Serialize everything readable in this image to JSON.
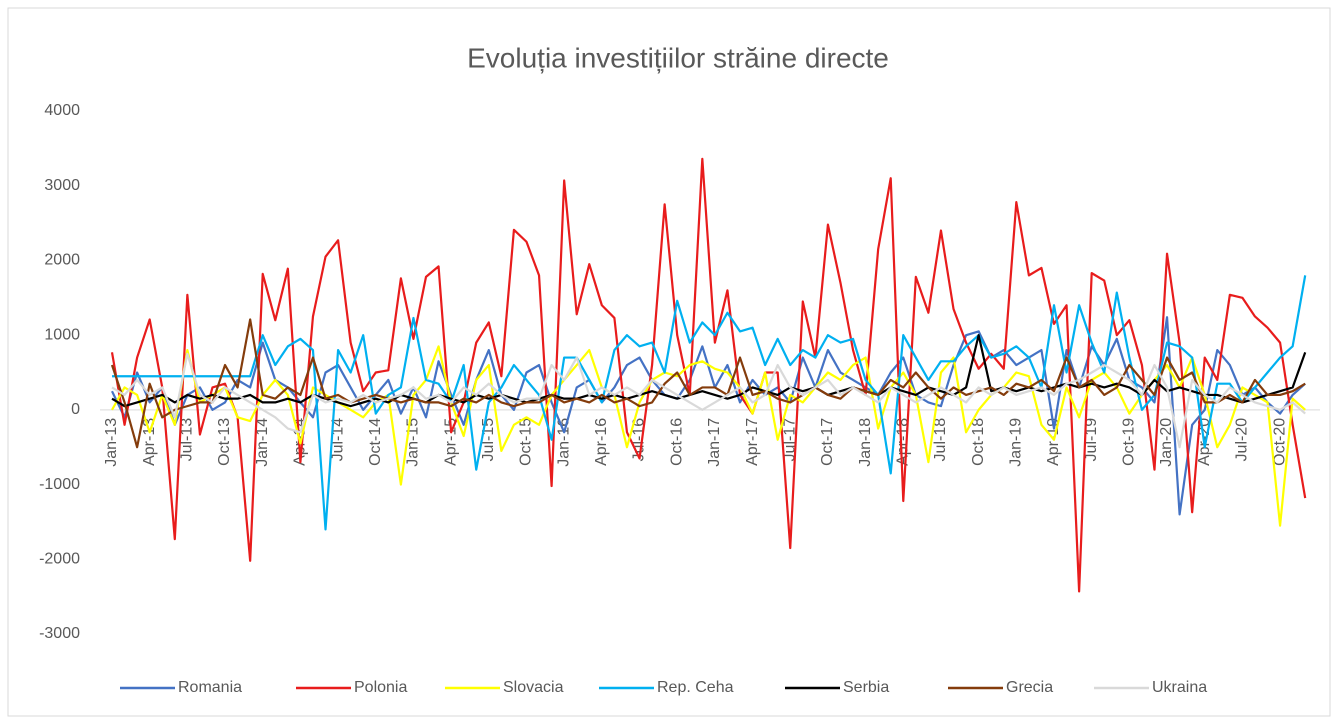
{
  "chart_data": {
    "type": "line",
    "title": "Evoluția investițiilor străine directe",
    "categories": [
      "Jan-13",
      null,
      null,
      "Apr-13",
      null,
      null,
      "Jul-13",
      null,
      null,
      "Oct-13",
      null,
      null,
      "Jan-14",
      null,
      null,
      "Apr-14",
      null,
      null,
      "Jul-14",
      null,
      null,
      "Oct-14",
      null,
      null,
      "Jan-15",
      null,
      null,
      "Apr-15",
      null,
      null,
      "Jul-15",
      null,
      null,
      "Oct-15",
      null,
      null,
      "Jan-16",
      null,
      null,
      "Apr-16",
      null,
      null,
      "Jul-16",
      null,
      null,
      "Oct-16",
      null,
      null,
      "Jan-17",
      null,
      null,
      "Apr-17",
      null,
      null,
      "Jul-17",
      null,
      null,
      "Oct-17",
      null,
      null,
      "Jan-18",
      null,
      null,
      "Apr-18",
      null,
      null,
      "Jul-18",
      null,
      null,
      "Oct-18",
      null,
      null,
      "Jan-19",
      null,
      null,
      "Apr-19",
      null,
      null,
      "Jul-19",
      null,
      null,
      "Oct-19",
      null,
      null,
      "Jan-20",
      null,
      null,
      "Apr-20",
      null,
      null,
      "Jul-20",
      null,
      null,
      "Oct-20",
      null,
      null
    ],
    "ylim": [
      -3000,
      4000
    ],
    "yticks": [
      -3000,
      -2000,
      -1000,
      0,
      1000,
      2000,
      3000,
      4000
    ],
    "legend": "bottom",
    "series": [
      {
        "name": "Romania",
        "color": "#4472c4",
        "values": [
          250,
          -100,
          500,
          100,
          300,
          -200,
          200,
          300,
          0,
          100,
          400,
          300,
          900,
          400,
          300,
          100,
          -100,
          500,
          600,
          300,
          0,
          200,
          400,
          -50,
          300,
          -100,
          650,
          200,
          -200,
          400,
          800,
          200,
          0,
          500,
          600,
          100,
          -300,
          300,
          400,
          100,
          300,
          600,
          700,
          400,
          200,
          150,
          400,
          850,
          300,
          600,
          100,
          400,
          200,
          300,
          100,
          700,
          300,
          800,
          500,
          400,
          300,
          200,
          500,
          700,
          200,
          100,
          50,
          600,
          1000,
          1050,
          700,
          800,
          600,
          700,
          800,
          -250,
          800,
          300,
          850,
          600,
          950,
          400,
          300,
          100,
          1240,
          -1400,
          -200,
          0,
          800,
          600,
          200,
          300,
          100,
          -50,
          200,
          350
        ]
      },
      {
        "name": "Polonia",
        "color": "#e81c1c",
        "values": [
          770,
          -200,
          700,
          1210,
          300,
          -1730,
          1540,
          -330,
          300,
          350,
          -100,
          -2020,
          1820,
          1200,
          1890,
          -700,
          1250,
          2050,
          2270,
          900,
          250,
          500,
          530,
          1760,
          950,
          1780,
          1920,
          -300,
          100,
          900,
          1170,
          450,
          2410,
          2250,
          1800,
          -1020,
          3070,
          1280,
          1950,
          1400,
          1230,
          -300,
          -650,
          600,
          2750,
          1000,
          200,
          3360,
          900,
          1600,
          200,
          -50,
          500,
          500,
          -1850,
          1450,
          700,
          2480,
          1700,
          800,
          200,
          2150,
          3100,
          -1220,
          1780,
          1300,
          2400,
          1350,
          900,
          550,
          750,
          550,
          2780,
          1800,
          1900,
          1150,
          1400,
          -2430,
          1830,
          1730,
          1000,
          1200,
          600,
          -800,
          2090,
          900,
          -1370,
          700,
          400,
          1540,
          1500,
          1250,
          1100,
          900,
          -200,
          -1180
        ]
      },
      {
        "name": "Slovacia",
        "color": "#ffff00",
        "values": [
          0,
          300,
          200,
          -300,
          200,
          -200,
          800,
          100,
          200,
          300,
          -100,
          -150,
          200,
          400,
          200,
          -450,
          300,
          200,
          100,
          0,
          -100,
          100,
          200,
          -1000,
          200,
          400,
          850,
          100,
          -350,
          400,
          600,
          -550,
          -200,
          -100,
          -200,
          200,
          400,
          600,
          800,
          300,
          200,
          -500,
          100,
          400,
          500,
          450,
          600,
          650,
          550,
          500,
          300,
          -50,
          500,
          -400,
          200,
          100,
          300,
          500,
          400,
          600,
          700,
          -250,
          300,
          500,
          200,
          -700,
          500,
          700,
          -300,
          0,
          200,
          300,
          500,
          450,
          -200,
          -400,
          300,
          -100,
          400,
          500,
          300,
          -50,
          200,
          400,
          600,
          300,
          700,
          200,
          -500,
          -200,
          300,
          200,
          100,
          -1550,
          150,
          0
        ]
      },
      {
        "name": "Rep. Ceha",
        "color": "#00b0f0",
        "values": [
          450,
          450,
          450,
          450,
          450,
          450,
          450,
          450,
          450,
          450,
          450,
          450,
          1000,
          600,
          850,
          950,
          800,
          -1600,
          800,
          500,
          1000,
          -50,
          200,
          300,
          1230,
          400,
          350,
          100,
          600,
          -800,
          100,
          300,
          600,
          400,
          200,
          -400,
          700,
          700,
          400,
          100,
          800,
          1000,
          850,
          900,
          500,
          1460,
          900,
          1170,
          1000,
          1300,
          1050,
          1100,
          600,
          950,
          600,
          800,
          700,
          1000,
          900,
          950,
          400,
          200,
          -850,
          1000,
          700,
          400,
          650,
          650,
          850,
          1000,
          700,
          750,
          850,
          700,
          300,
          1400,
          500,
          1400,
          900,
          500,
          1570,
          700,
          0,
          200,
          900,
          850,
          700,
          -500,
          350,
          350,
          100,
          300,
          500,
          700,
          850,
          1800
        ]
      },
      {
        "name": "Serbia",
        "color": "#000000",
        "values": [
          150,
          50,
          100,
          150,
          200,
          100,
          200,
          150,
          200,
          150,
          150,
          200,
          100,
          100,
          150,
          100,
          200,
          150,
          100,
          50,
          100,
          150,
          100,
          200,
          150,
          100,
          200,
          150,
          100,
          200,
          150,
          200,
          150,
          100,
          150,
          200,
          150,
          150,
          200,
          150,
          200,
          150,
          200,
          250,
          200,
          150,
          200,
          250,
          200,
          150,
          200,
          300,
          250,
          200,
          300,
          250,
          300,
          200,
          250,
          300,
          250,
          200,
          300,
          250,
          200,
          300,
          250,
          200,
          300,
          1000,
          250,
          300,
          250,
          300,
          250,
          300,
          350,
          300,
          350,
          300,
          350,
          300,
          200,
          400,
          250,
          300,
          250,
          200,
          200,
          150,
          100,
          150,
          200,
          250,
          300,
          770
        ]
      },
      {
        "name": "Grecia",
        "color": "#843c0c",
        "values": [
          600,
          100,
          -500,
          350,
          -100,
          0,
          50,
          100,
          100,
          600,
          300,
          1210,
          200,
          150,
          300,
          200,
          700,
          150,
          200,
          100,
          150,
          200,
          150,
          100,
          150,
          100,
          100,
          50,
          150,
          100,
          200,
          100,
          50,
          100,
          100,
          200,
          100,
          150,
          100,
          200,
          100,
          150,
          50,
          100,
          350,
          500,
          200,
          300,
          300,
          200,
          700,
          200,
          250,
          150,
          100,
          200,
          300,
          200,
          150,
          300,
          250,
          200,
          400,
          300,
          500,
          300,
          150,
          300,
          200,
          250,
          300,
          200,
          350,
          300,
          400,
          250,
          700,
          300,
          400,
          200,
          300,
          600,
          400,
          200,
          700,
          400,
          500,
          100,
          100,
          200,
          100,
          400,
          200,
          200,
          250,
          350
        ]
      },
      {
        "name": "Ukraina",
        "color": "#d9d9d9",
        "values": [
          300,
          200,
          400,
          200,
          300,
          -100,
          750,
          200,
          100,
          300,
          200,
          100,
          0,
          -100,
          -250,
          -300,
          200,
          100,
          150,
          100,
          200,
          100,
          150,
          200,
          300,
          150,
          200,
          100,
          300,
          200,
          350,
          200,
          100,
          150,
          150,
          600,
          400,
          700,
          200,
          300,
          200,
          300,
          200,
          400,
          300,
          200,
          100,
          0,
          100,
          200,
          300,
          100,
          200,
          600,
          300,
          200,
          300,
          400,
          200,
          300,
          200,
          100,
          300,
          200,
          100,
          200,
          300,
          200,
          100,
          300,
          200,
          300,
          200,
          250,
          300,
          200,
          350,
          400,
          500,
          600,
          500,
          400,
          200,
          600,
          300,
          -500,
          400,
          200,
          100,
          300,
          200,
          100,
          50,
          0,
          100,
          -50
        ]
      }
    ]
  }
}
